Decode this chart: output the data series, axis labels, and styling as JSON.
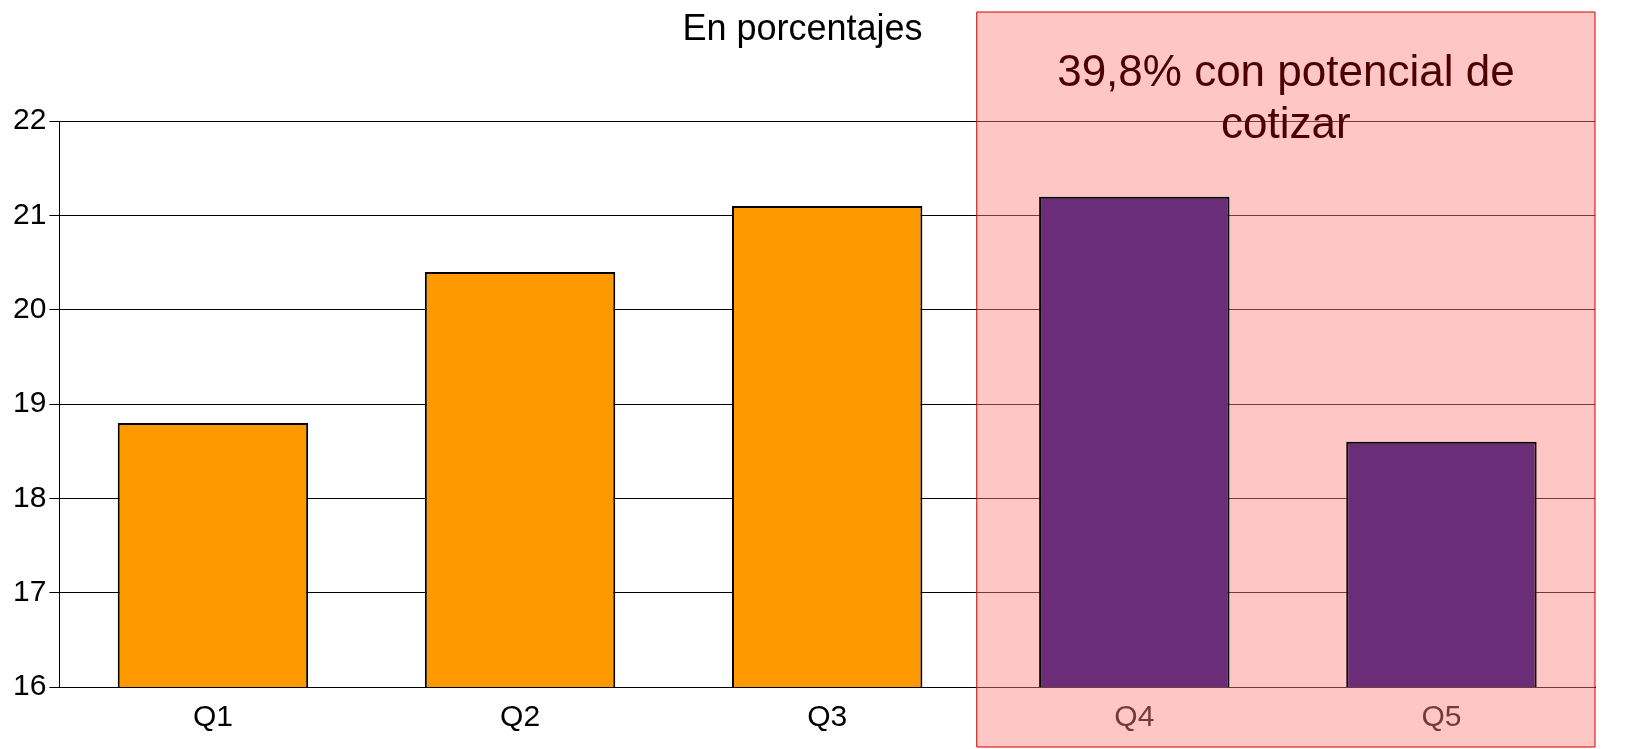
{
  "chart_data": {
    "type": "bar",
    "title": "En porcentajes",
    "categories": [
      "Q1",
      "Q2",
      "Q3",
      "Q4",
      "Q5"
    ],
    "values": [
      18.8,
      20.4,
      21.1,
      21.2,
      18.6
    ],
    "colors": [
      "#ff9900",
      "#ff9900",
      "#ff9900",
      "#6b2c78",
      "#6b2c78"
    ],
    "ylim": [
      16,
      22
    ],
    "yticks": [
      16,
      17,
      18,
      19,
      20,
      21,
      22
    ],
    "grid": "y",
    "legend": false,
    "bands": [
      {
        "axis": "x",
        "from": "Q4",
        "to": "Q5",
        "label": "39,8% con potencial de cotizar",
        "color": "#ff8080"
      }
    ]
  }
}
